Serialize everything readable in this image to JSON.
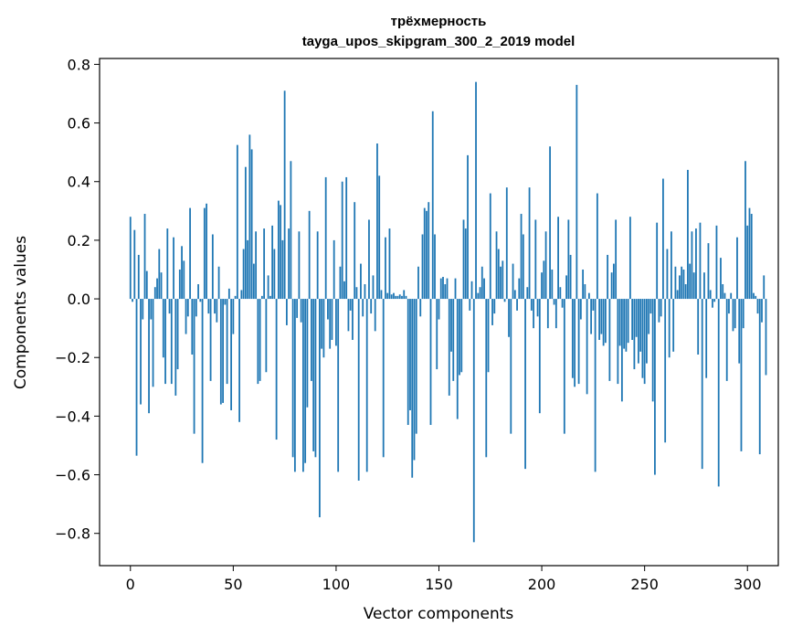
{
  "chart_data": {
    "type": "bar",
    "title": "трёхмерность",
    "subtitle": "tayga_upos_skipgram_300_2_2019 model",
    "xlabel": "Vector components",
    "ylabel": "Components values",
    "xlim": [
      -15,
      315
    ],
    "ylim": [
      -0.91,
      0.82
    ],
    "xticks": [
      0,
      50,
      100,
      150,
      200,
      250,
      300
    ],
    "xtick_labels": [
      "0",
      "50",
      "100",
      "150",
      "200",
      "250",
      "300"
    ],
    "yticks": [
      -0.8,
      -0.6,
      -0.4,
      -0.2,
      0.0,
      0.2,
      0.4,
      0.6,
      0.8
    ],
    "ytick_labels": [
      "−0.8",
      "−0.6",
      "−0.4",
      "−0.2",
      "0.0",
      "0.2",
      "0.4",
      "0.6",
      "0.8"
    ],
    "grid": false,
    "bar_color": "#1f77b4",
    "values": [
      0.28,
      -0.01,
      0.235,
      -0.535,
      0.15,
      -0.36,
      -0.07,
      0.29,
      0.095,
      -0.39,
      -0.07,
      -0.3,
      0.04,
      0.07,
      0.17,
      0.09,
      -0.2,
      -0.29,
      0.24,
      -0.05,
      -0.29,
      0.21,
      -0.33,
      -0.24,
      0.1,
      0.18,
      0.13,
      -0.12,
      -0.06,
      0.31,
      -0.19,
      -0.46,
      -0.06,
      0.05,
      -0.01,
      -0.56,
      0.31,
      0.325,
      -0.05,
      -0.28,
      0.22,
      -0.05,
      -0.08,
      0.11,
      -0.36,
      -0.355,
      -0.02,
      -0.29,
      0.035,
      -0.38,
      -0.12,
      0.01,
      0.525,
      -0.42,
      0.03,
      0.17,
      0.45,
      0.2,
      0.56,
      0.51,
      0.12,
      0.23,
      -0.29,
      -0.28,
      0.01,
      0.24,
      -0.25,
      0.08,
      0.01,
      0.25,
      0.17,
      -0.48,
      0.335,
      0.32,
      0.2,
      0.71,
      -0.09,
      0.24,
      0.47,
      -0.54,
      -0.59,
      -0.065,
      0.23,
      -0.08,
      -0.59,
      -0.56,
      -0.37,
      0.3,
      -0.28,
      -0.52,
      -0.54,
      0.23,
      -0.745,
      -0.17,
      -0.2,
      0.415,
      -0.07,
      -0.17,
      -0.14,
      0.2,
      -0.16,
      -0.59,
      0.11,
      0.4,
      0.06,
      0.415,
      -0.11,
      -0.04,
      -0.14,
      0.33,
      0.04,
      -0.62,
      0.12,
      -0.06,
      0.05,
      -0.59,
      0.27,
      -0.05,
      0.08,
      -0.11,
      0.53,
      0.42,
      0.03,
      -0.54,
      0.21,
      0.02,
      0.24,
      0.015,
      0.02,
      0.01,
      0.01,
      0.015,
      0.01,
      0.03,
      0.01,
      -0.43,
      -0.38,
      -0.61,
      -0.55,
      -0.46,
      0.11,
      -0.06,
      0.22,
      0.31,
      0.3,
      0.33,
      -0.43,
      0.64,
      0.22,
      -0.24,
      -0.07,
      0.07,
      0.075,
      0.05,
      0.07,
      -0.33,
      -0.18,
      -0.28,
      0.07,
      -0.41,
      -0.26,
      -0.25,
      0.27,
      0.24,
      0.49,
      -0.04,
      0.06,
      -0.83,
      0.74,
      0.02,
      0.04,
      0.11,
      0.07,
      -0.54,
      -0.25,
      0.36,
      -0.09,
      -0.05,
      0.23,
      0.17,
      0.11,
      0.13,
      -0.01,
      0.38,
      -0.13,
      -0.46,
      0.12,
      0.03,
      -0.04,
      0.07,
      0.29,
      0.22,
      -0.58,
      0.04,
      0.38,
      -0.04,
      -0.1,
      0.27,
      -0.06,
      -0.39,
      0.09,
      0.13,
      0.23,
      -0.1,
      0.52,
      0.1,
      -0.02,
      -0.1,
      0.28,
      0.04,
      -0.03,
      -0.46,
      0.08,
      0.27,
      0.15,
      -0.27,
      -0.3,
      0.73,
      -0.29,
      -0.07,
      0.1,
      0.05,
      -0.325,
      0.02,
      -0.12,
      -0.04,
      -0.59,
      0.36,
      -0.14,
      -0.12,
      -0.16,
      -0.15,
      0.15,
      -0.28,
      0.09,
      0.12,
      0.27,
      -0.29,
      -0.16,
      -0.35,
      -0.17,
      -0.18,
      -0.15,
      0.28,
      -0.14,
      -0.24,
      -0.13,
      -0.22,
      -0.18,
      -0.27,
      -0.29,
      -0.22,
      -0.12,
      -0.05,
      -0.35,
      -0.6,
      0.26,
      -0.08,
      -0.06,
      0.41,
      -0.49,
      0.17,
      -0.2,
      0.23,
      -0.18,
      0.11,
      0.03,
      0.08,
      0.11,
      0.1,
      0.05,
      0.44,
      0.12,
      0.23,
      0.09,
      0.24,
      -0.19,
      0.26,
      -0.58,
      0.09,
      -0.27,
      0.19,
      0.03,
      -0.03,
      -0.01,
      0.25,
      -0.64,
      0.14,
      0.05,
      0.02,
      -0.28,
      -0.05,
      0.02,
      -0.11,
      -0.1,
      0.21,
      -0.22,
      -0.52,
      -0.1,
      0.47,
      0.25,
      0.31,
      0.29,
      0.02,
      0.01,
      -0.05,
      -0.53,
      -0.08,
      0.08,
      -0.26
    ]
  }
}
